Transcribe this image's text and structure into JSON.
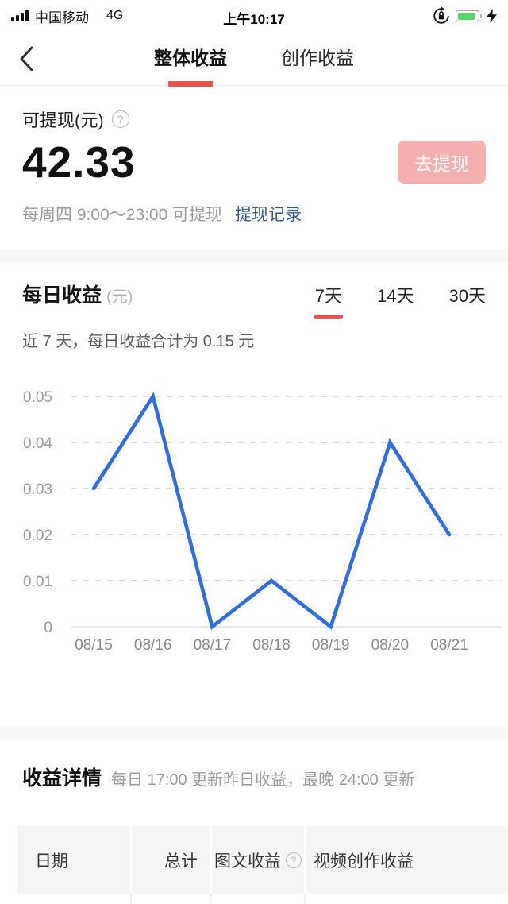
{
  "status_bar": {
    "carrier": "中国移动",
    "network": "4G",
    "time": "上午10:17",
    "icons": [
      "signal-icon",
      "rotation-lock-icon",
      "battery-icon",
      "charging-bolt-icon"
    ]
  },
  "navbar": {
    "back": "back-chevron",
    "tabs": [
      {
        "label": "整体收益",
        "active": true
      },
      {
        "label": "创作收益",
        "active": false
      }
    ]
  },
  "withdraw": {
    "label": "可提现(元)",
    "help": "?",
    "amount": "42.33",
    "button_label": "去提现",
    "note": "每周四 9:00～23:00 可提现",
    "link": "提现记录"
  },
  "daily": {
    "title": "每日收益",
    "unit": "(元)",
    "range_tabs": [
      {
        "label": "7天",
        "active": true
      },
      {
        "label": "14天",
        "active": false
      },
      {
        "label": "30天",
        "active": false
      }
    ],
    "summary": "近 7 天，每日收益合计为 0.15 元"
  },
  "chart_data": {
    "type": "line",
    "x": [
      "08/15",
      "08/16",
      "08/17",
      "08/18",
      "08/19",
      "08/20",
      "08/21"
    ],
    "values": [
      0.03,
      0.05,
      0,
      0.01,
      0,
      0.04,
      0.02
    ],
    "yticks": [
      0,
      0.01,
      0.02,
      0.03,
      0.04,
      0.05
    ],
    "ylim": [
      0,
      0.05
    ],
    "title": "",
    "xlabel": "",
    "ylabel": "每日收益(元)",
    "line_color": "#2f6de4",
    "grid": "dashed-horizontal",
    "legend": "none"
  },
  "details": {
    "title": "收益详情",
    "subtitle": "每日 17:00 更新昨日收益，最晚 24:00 更新",
    "table": {
      "columns": [
        "日期",
        "总计",
        "图文收益",
        "视频创作收益"
      ],
      "help": "?"
    }
  },
  "colors": {
    "accent_red": "#e9534e",
    "button_pink": "#f6b0b0",
    "link_blue": "#35548f",
    "chart_blue": "#2f6de4",
    "battery_green": "#53d769"
  }
}
